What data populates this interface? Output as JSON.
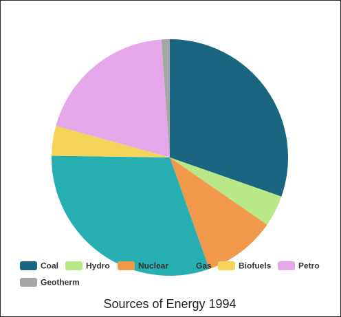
{
  "chart_data": {
    "type": "pie",
    "title": "Sources of Energy 1994",
    "legend_position": "bottom-overlay",
    "slices": [
      {
        "label": "Coal",
        "value": 32.0,
        "color": "#1a6680"
      },
      {
        "label": "Hydro",
        "value": 4.5,
        "color": "#b8e986"
      },
      {
        "label": "Nuclear",
        "value": 10.5,
        "color": "#f0994a"
      },
      {
        "label": "Gas",
        "value": 32.3,
        "color": "#26aeb0"
      },
      {
        "label": "Biofuels",
        "value": 4.3,
        "color": "#f4d55a"
      },
      {
        "label": "Petro",
        "value": 20.6,
        "color": "#e4a8ea"
      },
      {
        "label": "Geotherm",
        "value": 1.2,
        "color": "#a6a6a6"
      }
    ]
  }
}
